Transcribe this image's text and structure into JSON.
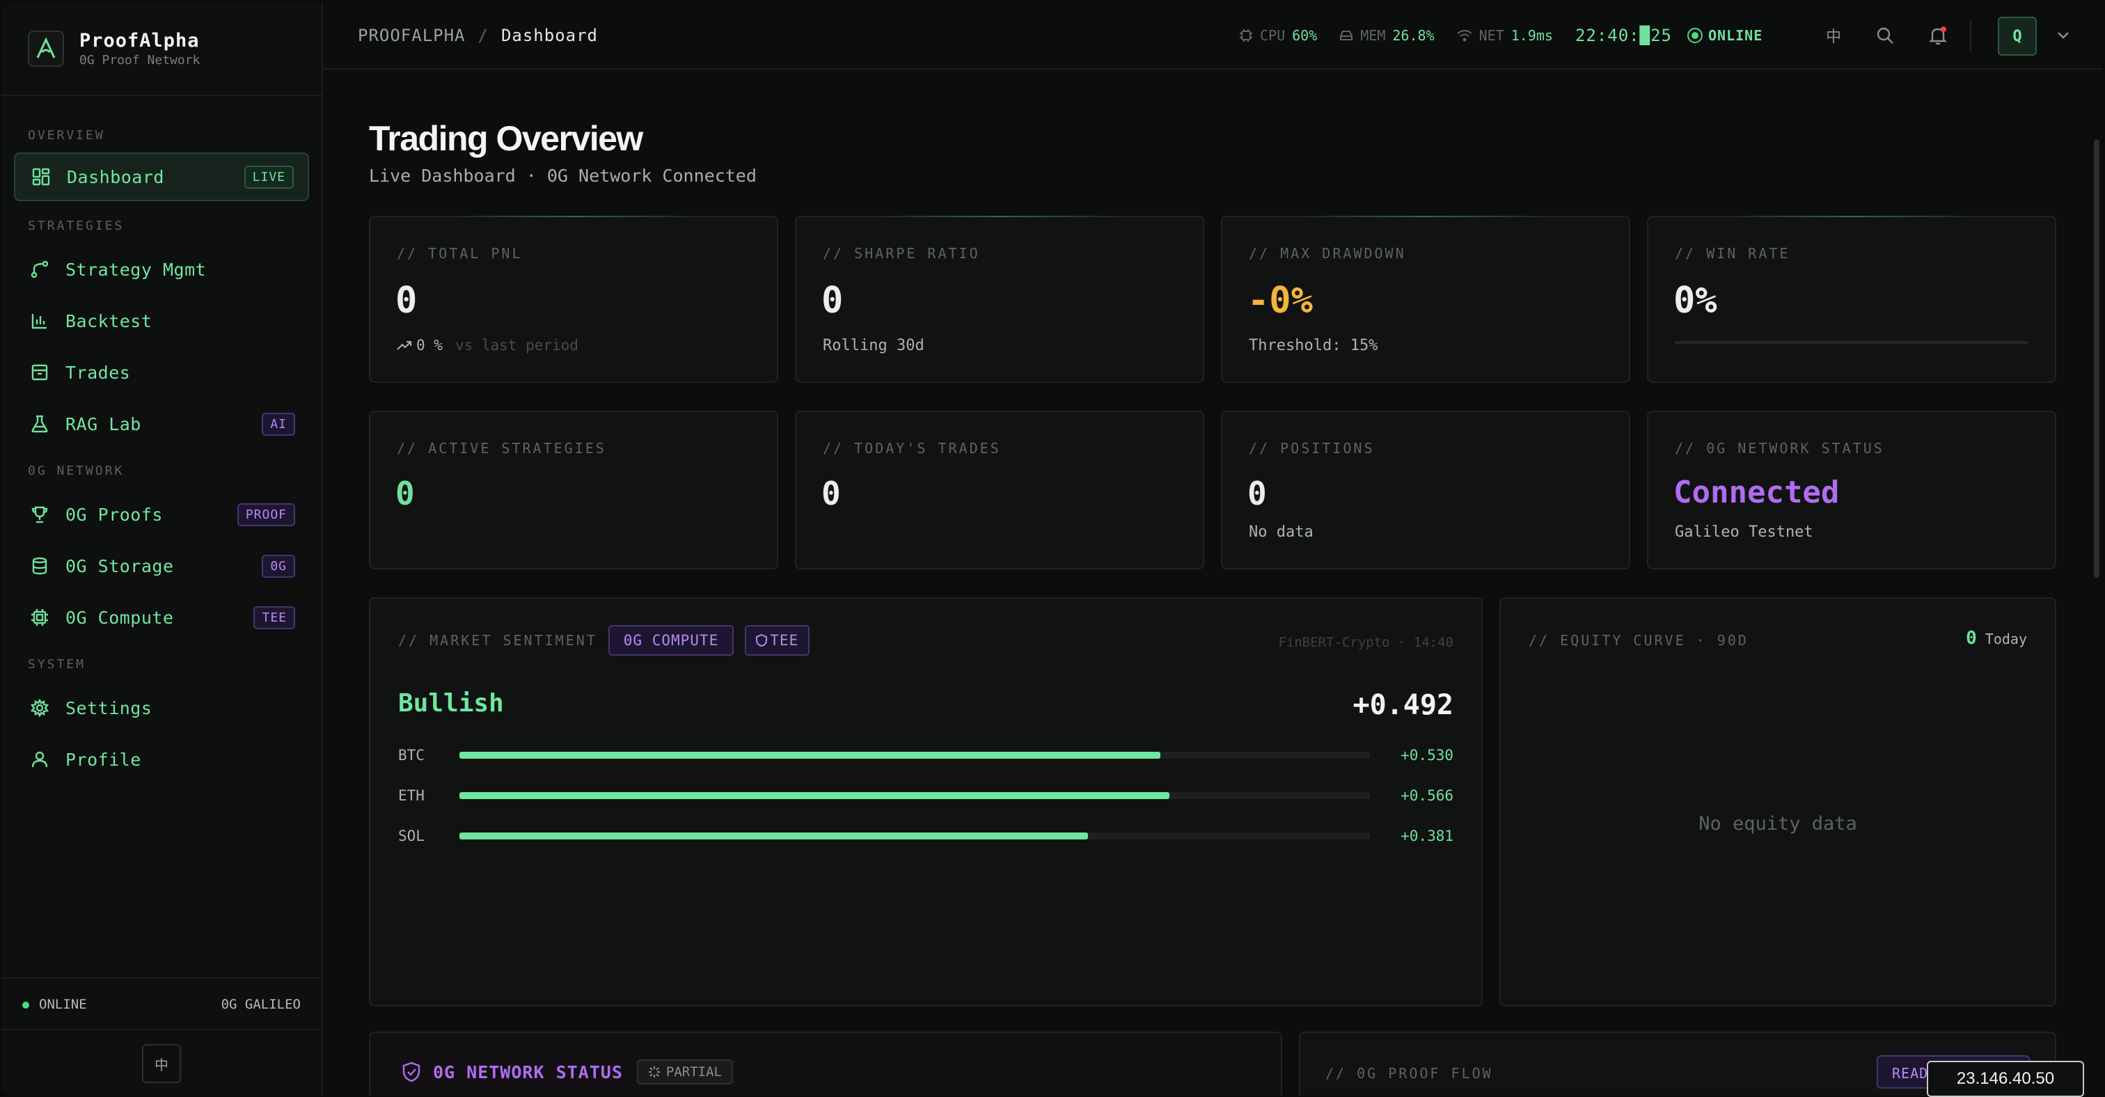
{
  "brand": {
    "name": "ProofAlpha",
    "subtitle": "0G Proof Network"
  },
  "sidebar": {
    "sections": [
      "OVERVIEW",
      "STRATEGIES",
      "0G NETWORK",
      "SYSTEM"
    ],
    "items": [
      {
        "label": "Dashboard",
        "badge": "LIVE",
        "icon": "grid-icon"
      },
      {
        "label": "Strategy Mgmt",
        "badge": "",
        "icon": "branch-icon"
      },
      {
        "label": "Backtest",
        "badge": "",
        "icon": "bar-chart-icon"
      },
      {
        "label": "Trades",
        "badge": "",
        "icon": "box-icon"
      },
      {
        "label": "RAG Lab",
        "badge": "AI",
        "icon": "flask-icon"
      },
      {
        "label": "0G Proofs",
        "badge": "PROOF",
        "icon": "trophy-icon"
      },
      {
        "label": "0G Storage",
        "badge": "0G",
        "icon": "database-icon"
      },
      {
        "label": "0G Compute",
        "badge": "TEE",
        "icon": "cpu-icon"
      },
      {
        "label": "Settings",
        "badge": "",
        "icon": "gear-icon"
      },
      {
        "label": "Profile",
        "badge": "",
        "icon": "user-icon"
      }
    ],
    "footer": {
      "status": "ONLINE",
      "network": "0G GALILEO",
      "lang": "中"
    }
  },
  "topbar": {
    "breadcrumb_root": "PROOFALPHA",
    "breadcrumb_sep": "/",
    "breadcrumb_current": "Dashboard",
    "cpu_label": "CPU",
    "cpu_value": "60%",
    "mem_label": "MEM",
    "mem_value": "26.8%",
    "net_label": "NET",
    "net_value": "1.9ms",
    "clock": "22:40:█25",
    "status": "ONLINE",
    "lang": "中",
    "avatar": "Q"
  },
  "page": {
    "title": "Trading Overview",
    "subtitle": "Live Dashboard · 0G Network Connected"
  },
  "kpis": [
    {
      "label": "// TOTAL PNL",
      "value": "0",
      "sub": "0 %",
      "sub2": "vs last period"
    },
    {
      "label": "// SHARPE RATIO",
      "value": "0",
      "sub": "Rolling 30d"
    },
    {
      "label": "// MAX DRAWDOWN",
      "value": "-0%",
      "sub": "Threshold: 15%"
    },
    {
      "label": "// WIN RATE",
      "value": "0%",
      "progress": 0
    },
    {
      "label": "// ACTIVE STRATEGIES",
      "value": "0"
    },
    {
      "label": "// TODAY'S TRADES",
      "value": "0"
    },
    {
      "label": "// POSITIONS",
      "value": "0",
      "sub": "No data"
    },
    {
      "label": "// 0G NETWORK STATUS",
      "value": "Connected",
      "sub": "Galileo Testnet"
    }
  ],
  "sentiment": {
    "label": "// MARKET SENTIMENT",
    "tag_compute": "0G COMPUTE",
    "tag_tee": "TEE",
    "model": "FinBERT-Crypto · 14:40",
    "verdict": "Bullish",
    "score": "+0.492",
    "rows": [
      {
        "symbol": "BTC",
        "value": "+0.530",
        "level": 0.77
      },
      {
        "symbol": "ETH",
        "value": "+0.566",
        "level": 0.78
      },
      {
        "symbol": "SOL",
        "value": "+0.381",
        "level": 0.69
      }
    ]
  },
  "equity": {
    "label": "// EQUITY CURVE · 90D",
    "value": "0",
    "today": "Today",
    "empty": "No equity data"
  },
  "network_panel": {
    "title": "0G NETWORK STATUS",
    "tag": "PARTIAL"
  },
  "proof_panel": {
    "title": "// 0G PROOF FLOW",
    "button": "READ"
  },
  "overlay": {
    "ip": "23.146.40.50"
  },
  "colors": {
    "accent": "#6fe19c",
    "purple": "#b987f5",
    "warning": "#f2b53b",
    "bg": "#0c0d0d"
  }
}
